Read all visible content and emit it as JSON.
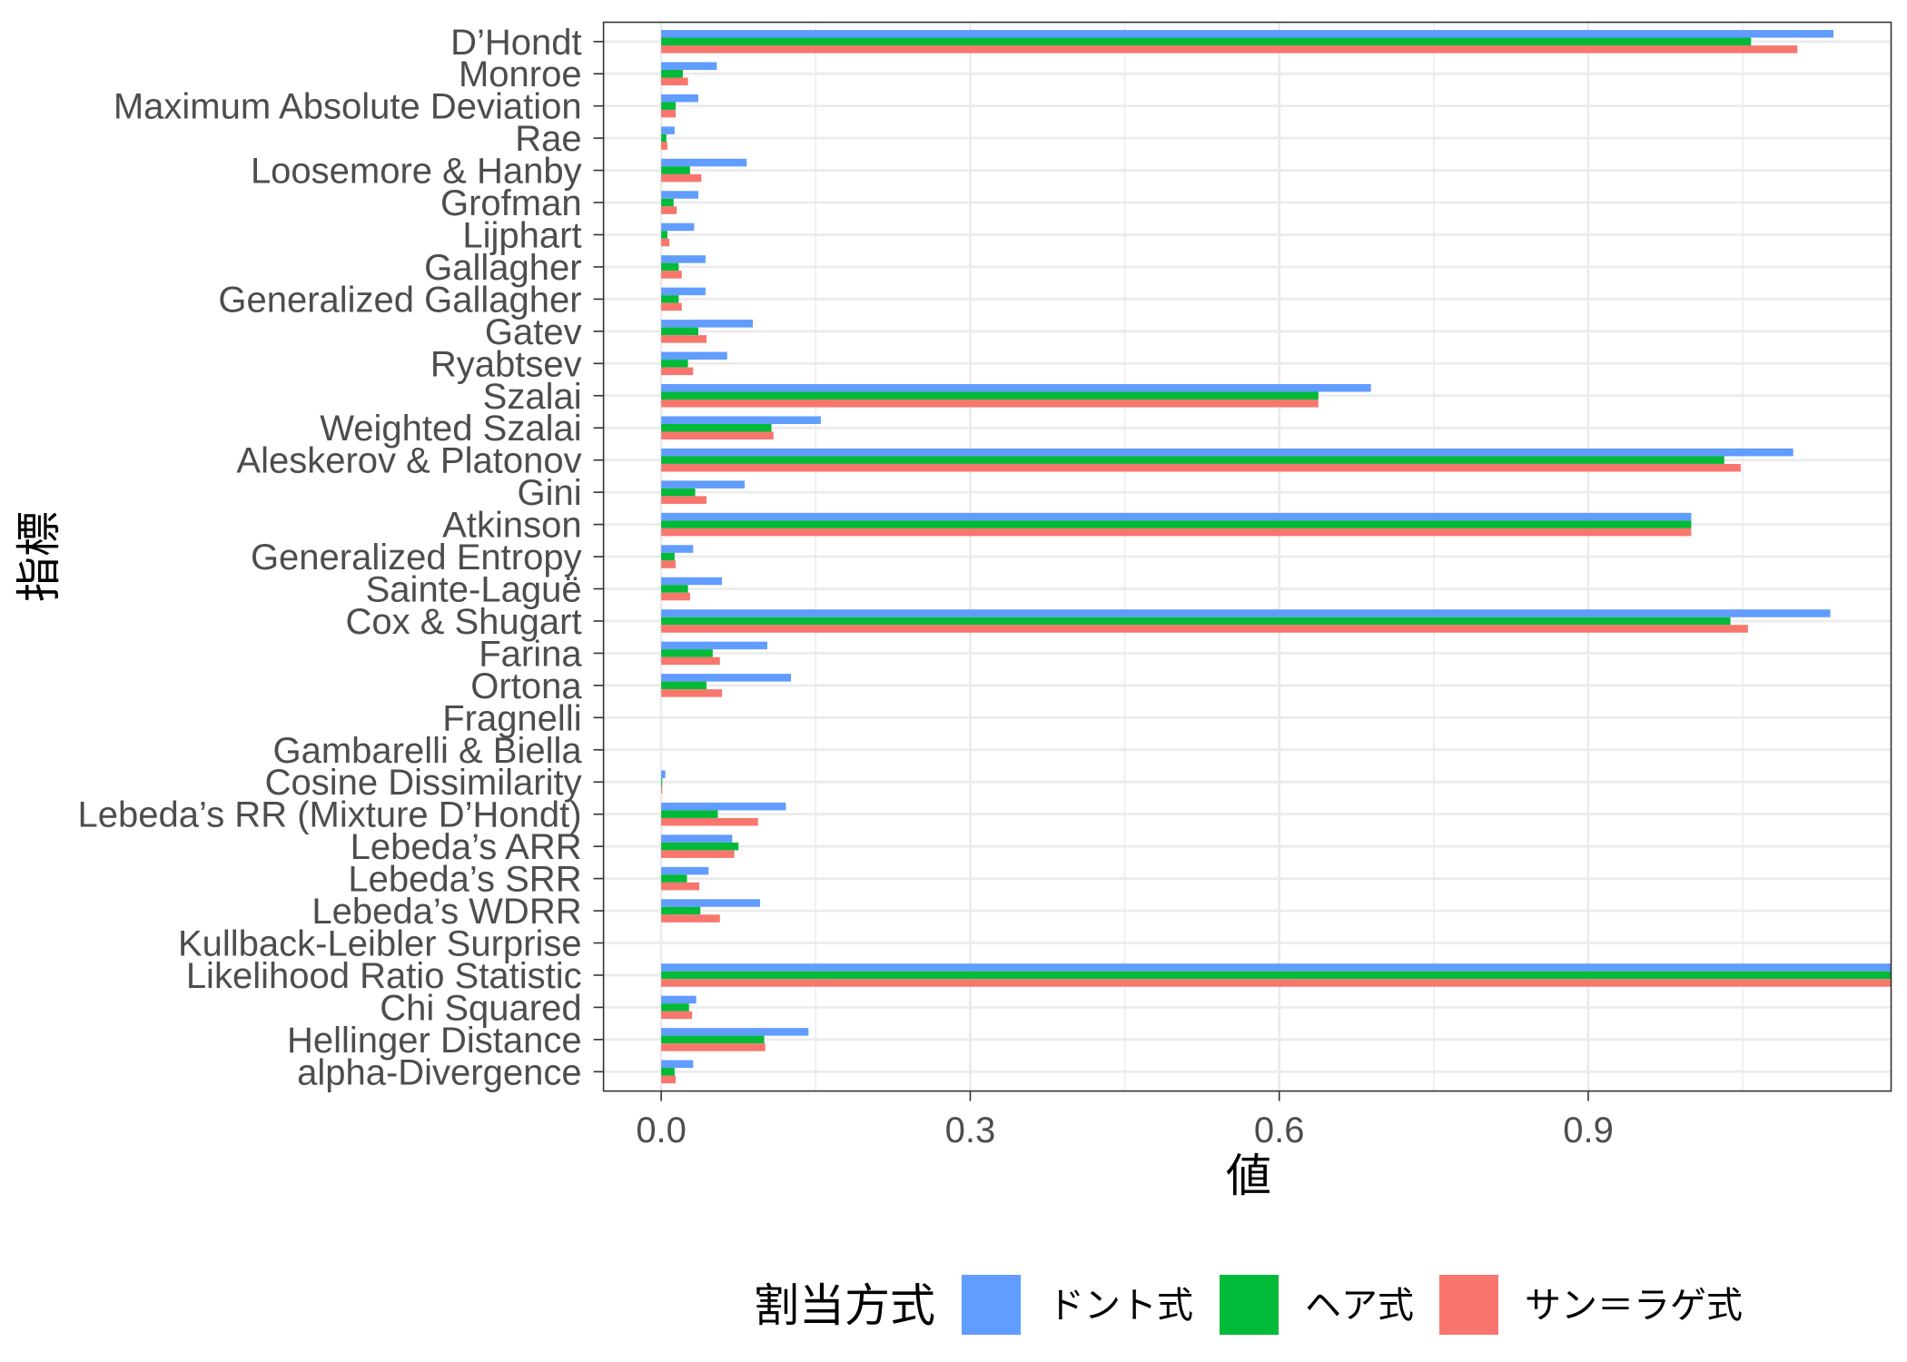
{
  "chart_data": {
    "type": "bar",
    "orientation": "horizontal",
    "categories": [
      "D’Hondt",
      "Monroe",
      "Maximum Absolute Deviation",
      "Rae",
      "Loosemore & Hanby",
      "Grofman",
      "Lijphart",
      "Gallagher",
      "Generalized Gallagher",
      "Gatev",
      "Ryabtsev",
      "Szalai",
      "Weighted Szalai",
      "Aleskerov & Platonov",
      "Gini",
      "Atkinson",
      "Generalized Entropy",
      "Sainte-Laguë",
      "Cox & Shugart",
      "Farina",
      "Ortona",
      "Fragnelli",
      "Gambarelli & Biella",
      "Cosine Dissimilarity",
      "Lebeda’s RR (Mixture D’Hondt)",
      "Lebeda’s ARR",
      "Lebeda’s SRR",
      "Lebeda’s WDRR",
      "Kullback-Leibler Surprise",
      "Likelihood Ratio Statistic",
      "Chi Squared",
      "Hellinger Distance",
      "alpha-Divergence"
    ],
    "series": [
      {
        "name": "ドント式",
        "color": "#619CFF",
        "values": [
          1.138,
          0.054,
          0.036,
          0.013,
          0.083,
          0.036,
          0.032,
          0.043,
          0.043,
          0.089,
          0.064,
          0.689,
          0.155,
          1.099,
          0.081,
          1.0,
          0.031,
          0.059,
          1.135,
          0.103,
          0.126,
          0,
          0,
          0.004,
          0.121,
          0.069,
          0.046,
          0.096,
          0,
          1.2,
          0.034,
          0.143,
          0.031
        ]
      },
      {
        "name": "ヘア式",
        "color": "#00BA38",
        "values": [
          1.058,
          0.021,
          0.014,
          0.005,
          0.028,
          0.012,
          0.006,
          0.017,
          0.017,
          0.036,
          0.026,
          0.638,
          0.107,
          1.032,
          0.033,
          1.0,
          0.013,
          0.026,
          1.038,
          0.05,
          0.044,
          0,
          0,
          0.001,
          0.055,
          0.075,
          0.025,
          0.038,
          0,
          1.2,
          0.027,
          0.1,
          0.013
        ]
      },
      {
        "name": "サン＝ラゲ式",
        "color": "#F8766D",
        "values": [
          1.103,
          0.026,
          0.014,
          0.006,
          0.039,
          0.015,
          0.008,
          0.02,
          0.02,
          0.044,
          0.031,
          0.638,
          0.109,
          1.048,
          0.044,
          1.0,
          0.014,
          0.028,
          1.055,
          0.057,
          0.059,
          0,
          0,
          0.001,
          0.094,
          0.071,
          0.037,
          0.057,
          0,
          1.2,
          0.03,
          0.101,
          0.014
        ]
      }
    ],
    "xlabel": "値",
    "ylabel": "指標",
    "xlim": [
      -0.056,
      1.194
    ],
    "xticks": [
      0,
      0.3,
      0.6,
      0.9
    ],
    "xtick_labels": [
      "0.0",
      "0.3",
      "0.6",
      "0.9"
    ],
    "grid": true,
    "legend": {
      "title": "割当方式",
      "position": "bottom"
    }
  }
}
